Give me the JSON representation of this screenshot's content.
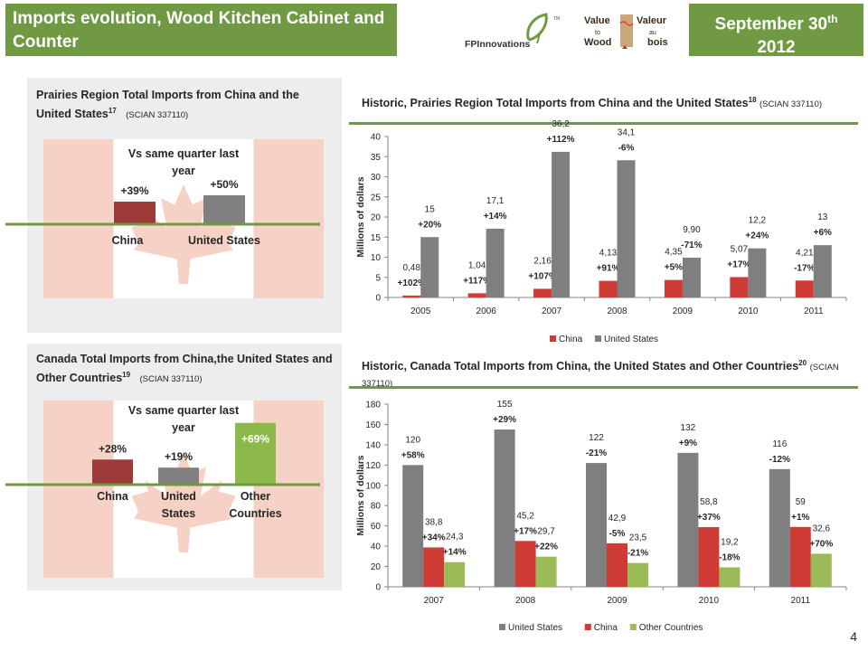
{
  "header": {
    "title": "Imports evolution, Wood Kitchen Cabinet and Counter",
    "date_line1": "September 30",
    "date_sup": "th",
    "date_line2": "2012"
  },
  "logos": {
    "fpinnovations": "FPInnovations",
    "value_to_wood": [
      "Value",
      "to",
      "Wood"
    ],
    "valeur_au_bois": [
      "Valeur",
      "au",
      "bois"
    ],
    "tm": "TM"
  },
  "panel1": {
    "title": "Prairies Region Total Imports from China and the United States",
    "title_sup": "17",
    "title_code": "(SCIAN  337110)",
    "subtitle": "Vs same quarter last year",
    "bars": [
      {
        "label": "China",
        "change": "+39%",
        "value": 39,
        "color": "#9b3a36"
      },
      {
        "label": "United States",
        "change": "+50%",
        "value": 50,
        "color": "#808080"
      }
    ]
  },
  "panel2": {
    "title": "Canada Total Imports from China,the United States and Other Countries",
    "title_sup": "19",
    "title_code": "(SCIAN  337110)",
    "subtitle": "Vs same quarter last year",
    "bars": [
      {
        "label": "China",
        "label_lines": [
          "China"
        ],
        "change": "+28%",
        "value": 28,
        "color": "#9b3a36"
      },
      {
        "label": "United States",
        "label_lines": [
          "United",
          "States"
        ],
        "change": "+19%",
        "value": 19,
        "color": "#808080"
      },
      {
        "label": "Other Countries",
        "label_lines": [
          "Other",
          "Countries"
        ],
        "change": "+69%",
        "value": 69,
        "color": "#8db84a"
      }
    ]
  },
  "chart1_title": {
    "text": "Historic, Prairies Region Total Imports from China and the United States",
    "sup": "18",
    "code": "(SCIAN 337110)"
  },
  "chart2_title": {
    "text": "Historic, Canada Total Imports from China, the United States and Other Countries",
    "sup": "20",
    "code": "(SCIAN 337110)"
  },
  "page_number": "4",
  "chart_data": [
    {
      "type": "bar",
      "title": "Historic, Prairies Region Total Imports from China and the United States",
      "ylabel": "Millions of dollars",
      "ylim": [
        0,
        40
      ],
      "yticks": [
        0,
        5,
        10,
        15,
        20,
        25,
        30,
        35,
        40
      ],
      "categories": [
        "2005",
        "2006",
        "2007",
        "2008",
        "2009",
        "2010",
        "2011"
      ],
      "legend": "bottom",
      "series": [
        {
          "name": "China",
          "color": "#cf3b35",
          "values": [
            0.48,
            1.04,
            2.16,
            4.13,
            4.35,
            5.07,
            4.21
          ],
          "labels": [
            "0,48",
            "1,04",
            "2,16",
            "4,13",
            "4,35",
            "5,07",
            "4,21"
          ],
          "changes": [
            "+102%",
            "+117%",
            "+107%",
            "+91%",
            "+5%",
            "+17%",
            "-17%"
          ]
        },
        {
          "name": "United States",
          "color": "#7f7f7f",
          "values": [
            15,
            17.1,
            36.2,
            34.1,
            9.9,
            12.2,
            13
          ],
          "labels": [
            "15",
            "17,1",
            "36,2",
            "34,1",
            "9,90",
            "12,2",
            "13"
          ],
          "changes": [
            "+20%",
            "+14%",
            "+112%",
            "-6%",
            "-71%",
            "+24%",
            "+6%"
          ]
        }
      ]
    },
    {
      "type": "bar",
      "title": "Historic, Canada Total Imports from China, the United States and Other Countries",
      "ylabel": "Millions of dollars",
      "ylim": [
        0,
        180
      ],
      "yticks": [
        0,
        20,
        40,
        60,
        80,
        100,
        120,
        140,
        160,
        180
      ],
      "categories": [
        "2007",
        "2008",
        "2009",
        "2010",
        "2011"
      ],
      "legend": "bottom",
      "series": [
        {
          "name": "United States",
          "color": "#7f7f7f",
          "values": [
            120,
            155,
            122,
            132,
            116
          ],
          "labels": [
            "120",
            "155",
            "122",
            "132",
            "116"
          ],
          "changes": [
            "+58%",
            "+29%",
            "-21%",
            "+9%",
            "-12%"
          ]
        },
        {
          "name": "China",
          "color": "#cf3b35",
          "values": [
            38.8,
            45.2,
            42.9,
            58.8,
            59
          ],
          "labels": [
            "38,8",
            "45,2",
            "42,9",
            "58,8",
            "59"
          ],
          "changes": [
            "+34%",
            "+17%",
            "-5%",
            "+37%",
            "+1%"
          ]
        },
        {
          "name": "Other Countries",
          "color": "#9bbb59",
          "values": [
            24.3,
            29.7,
            23.5,
            19.2,
            32.6
          ],
          "labels": [
            "24,3",
            "29,7",
            "23,5",
            "19,2",
            "32,6"
          ],
          "changes": [
            "+14%",
            "+22%",
            "-21%",
            "-18%",
            "+70%"
          ]
        }
      ]
    }
  ]
}
